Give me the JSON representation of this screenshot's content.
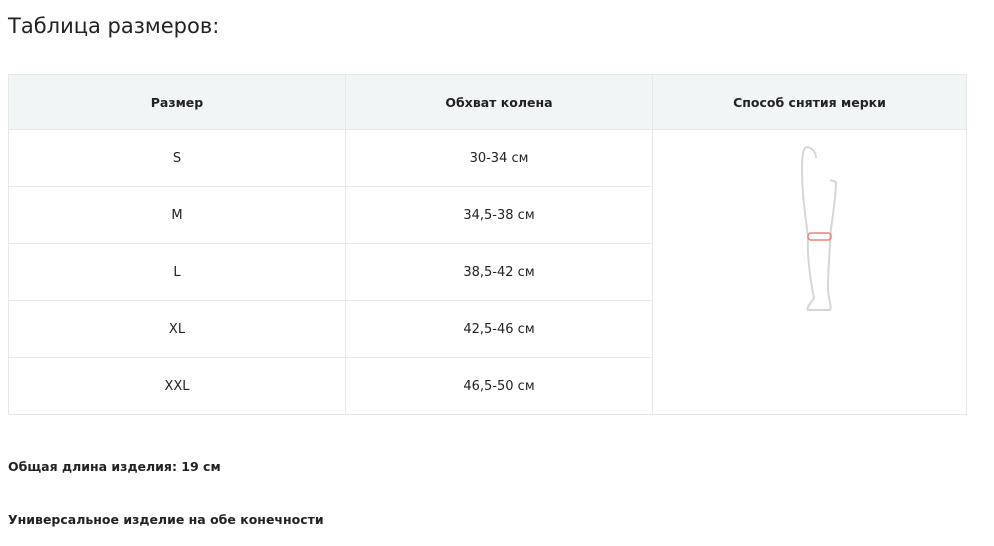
{
  "title": "Таблица размеров:",
  "table": {
    "headers": [
      "Размер",
      "Обхват колена",
      "Способ снятия мерки"
    ],
    "rows": [
      {
        "size": "S",
        "girth": "30-34 см"
      },
      {
        "size": "M",
        "girth": "34,5-38 см"
      },
      {
        "size": "L",
        "girth": "38,5-42 см"
      },
      {
        "size": "XL",
        "girth": "42,5-46 см"
      },
      {
        "size": "XXL",
        "girth": "46,5-50 см"
      }
    ],
    "illustration": "leg-measurement-icon",
    "accent": "#f08070"
  },
  "notes": [
    "Общая длина изделия: 19 см",
    "Универсальное изделие на обе конечности"
  ]
}
